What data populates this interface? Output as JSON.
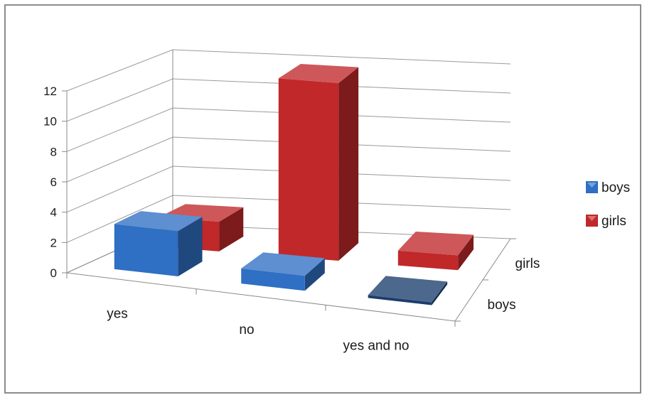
{
  "chart_data": {
    "type": "bar",
    "subtype": "3d-column",
    "title": "",
    "xlabel": "",
    "ylabel": "",
    "categories": [
      "yes",
      "no",
      "yes and no"
    ],
    "series": [
      {
        "name": "boys",
        "values": [
          3,
          1,
          0
        ],
        "color": "#2f6fc4"
      },
      {
        "name": "girls",
        "values": [
          2,
          12,
          1
        ],
        "color": "#c0282a"
      }
    ],
    "ylim": [
      0,
      12
    ],
    "yticks": [
      "0",
      "2",
      "4",
      "6",
      "8",
      "10",
      "12"
    ],
    "depth_labels": [
      "girls",
      "boys"
    ],
    "grid": true,
    "legend_position": "right"
  }
}
